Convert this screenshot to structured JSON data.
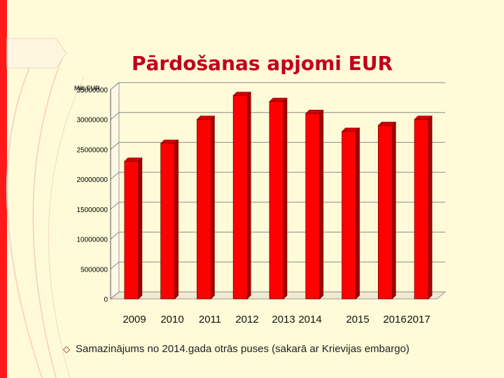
{
  "slide": {
    "title": "Pārdošanas apjomi EUR",
    "bullet_text": "Samazinājums no 2014.gada otrās puses (sakarā ar Krievijas embargo)",
    "accent_color": "#ff1a1a",
    "title_color": "#c0001a",
    "background": "#fffbd8"
  },
  "chart_data": {
    "type": "bar",
    "title": "Pārdošanas apjomi EUR",
    "xlabel": "",
    "ylabel": "Milj.EUR",
    "categories": [
      "2009",
      "2010",
      "2011",
      "2012",
      "2013",
      "2014",
      "2015",
      "2016",
      "2017"
    ],
    "series": [
      {
        "values": [
          23000000,
          26000000,
          30000000,
          34000000,
          33000000,
          31000000,
          28000000,
          29000000,
          30000000
        ]
      }
    ],
    "ylim": [
      0,
      35000000
    ],
    "yticks": [
      0,
      5000000,
      10000000,
      15000000,
      20000000,
      25000000,
      30000000,
      35000000
    ],
    "grid": true,
    "legend": "none",
    "bar_color": "#ff0000",
    "bar_side_color": "#a30000"
  }
}
